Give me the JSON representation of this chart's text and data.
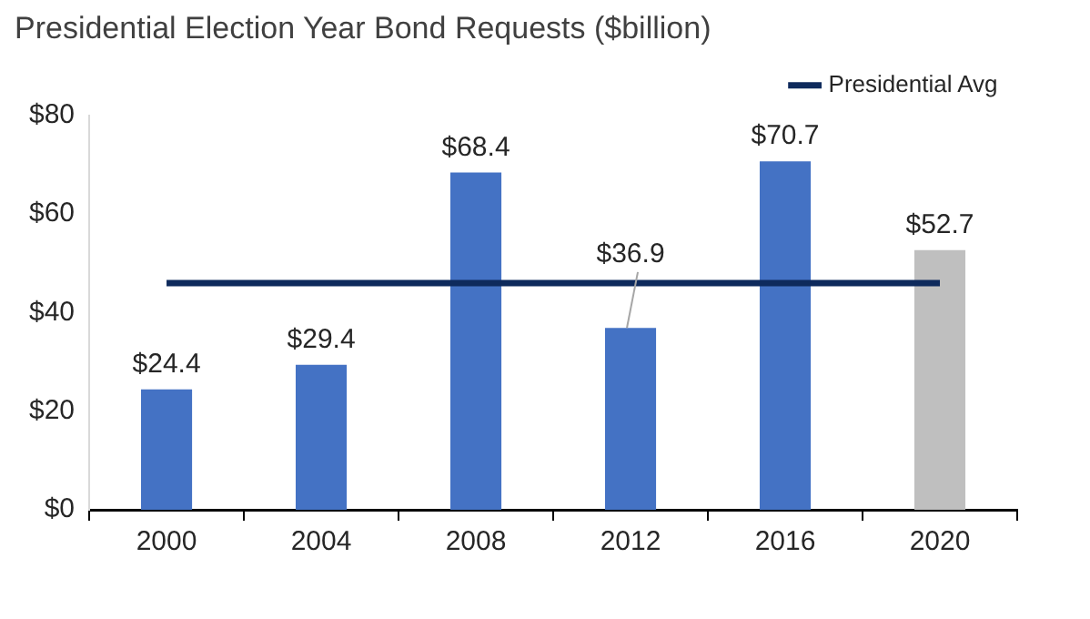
{
  "chart_data": {
    "type": "bar",
    "title": "Presidential Election Year Bond Requests ($billion)",
    "categories": [
      "2000",
      "2004",
      "2008",
      "2012",
      "2016",
      "2020"
    ],
    "series": [
      {
        "colors": [
          "#4472c4",
          "#4472c4",
          "#4472c4",
          "#4472c4",
          "#4472c4",
          "#bfbfbf"
        ],
        "values": [
          24.4,
          29.4,
          68.4,
          36.9,
          70.7,
          52.7
        ],
        "value_labels": [
          "$24.4",
          "$29.4",
          "$68.4",
          "$36.9",
          "$70.7",
          "$52.7"
        ]
      },
      {
        "type": "line",
        "name": "Presidential Avg",
        "color": "#0e2a5c",
        "values": [
          46,
          46,
          46,
          46,
          46,
          46
        ],
        "marker": "none"
      }
    ],
    "ylim": [
      0,
      80
    ],
    "yticks": [
      {
        "value": 0,
        "label": "$0"
      },
      {
        "value": 20,
        "label": "$20"
      },
      {
        "value": 40,
        "label": "$40"
      },
      {
        "value": 60,
        "label": "$60"
      },
      {
        "value": 80,
        "label": "$80"
      }
    ],
    "grid": false,
    "legend": "top right"
  }
}
